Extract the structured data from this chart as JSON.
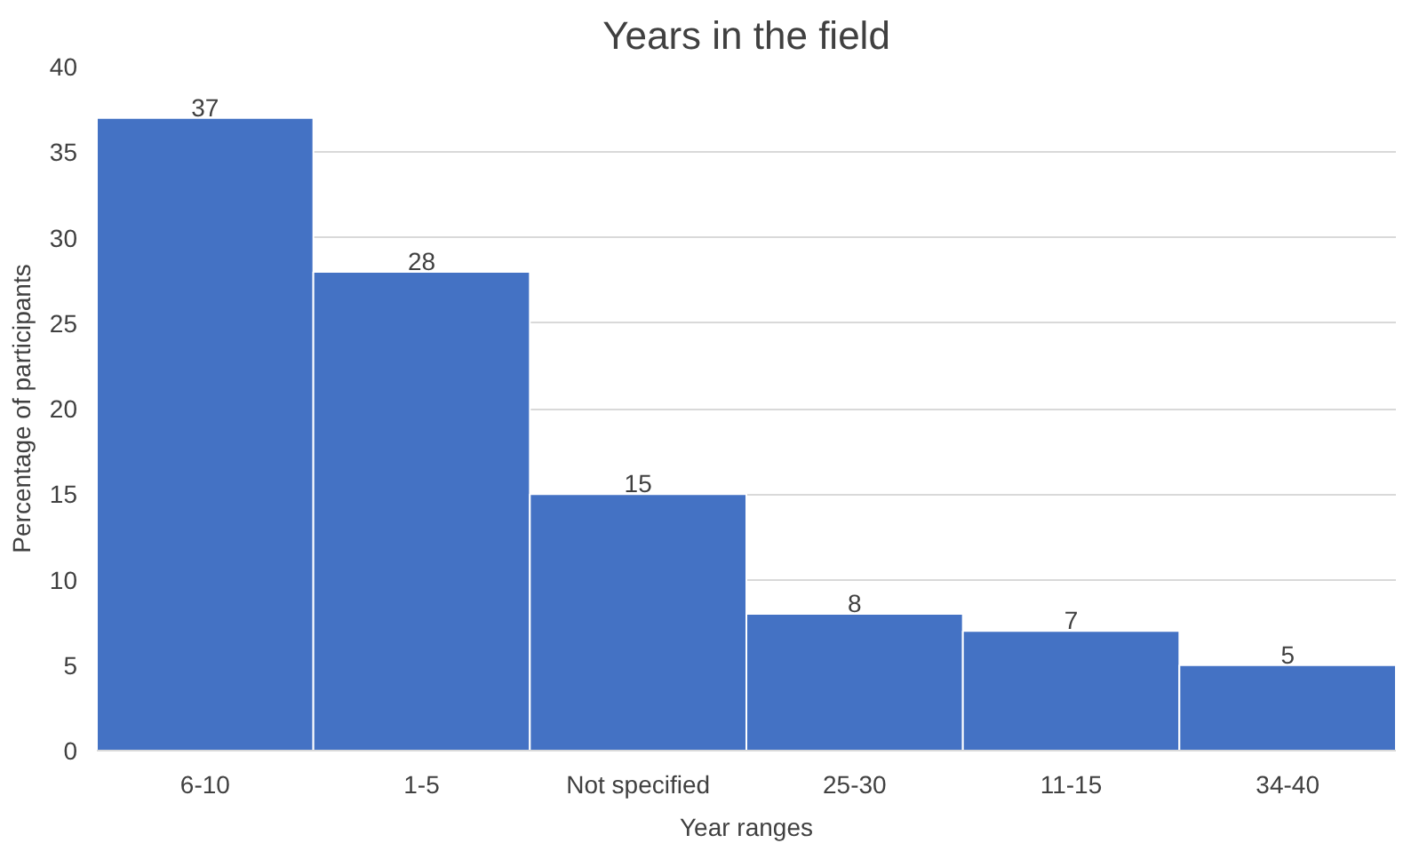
{
  "chart_data": {
    "type": "bar",
    "title": "Years in the field",
    "xlabel": "Year ranges",
    "ylabel": "Percentage of participants",
    "categories": [
      "6-10",
      "1-5",
      "Not specified",
      "25-30",
      "11-15",
      "34-40"
    ],
    "values": [
      37,
      28,
      15,
      8,
      7,
      5
    ],
    "color": "#4472c4",
    "ylim": [
      0,
      40
    ],
    "yticks": [
      0,
      5,
      10,
      15,
      20,
      25,
      30,
      35,
      40
    ],
    "grid": "y",
    "data_labels": true
  }
}
